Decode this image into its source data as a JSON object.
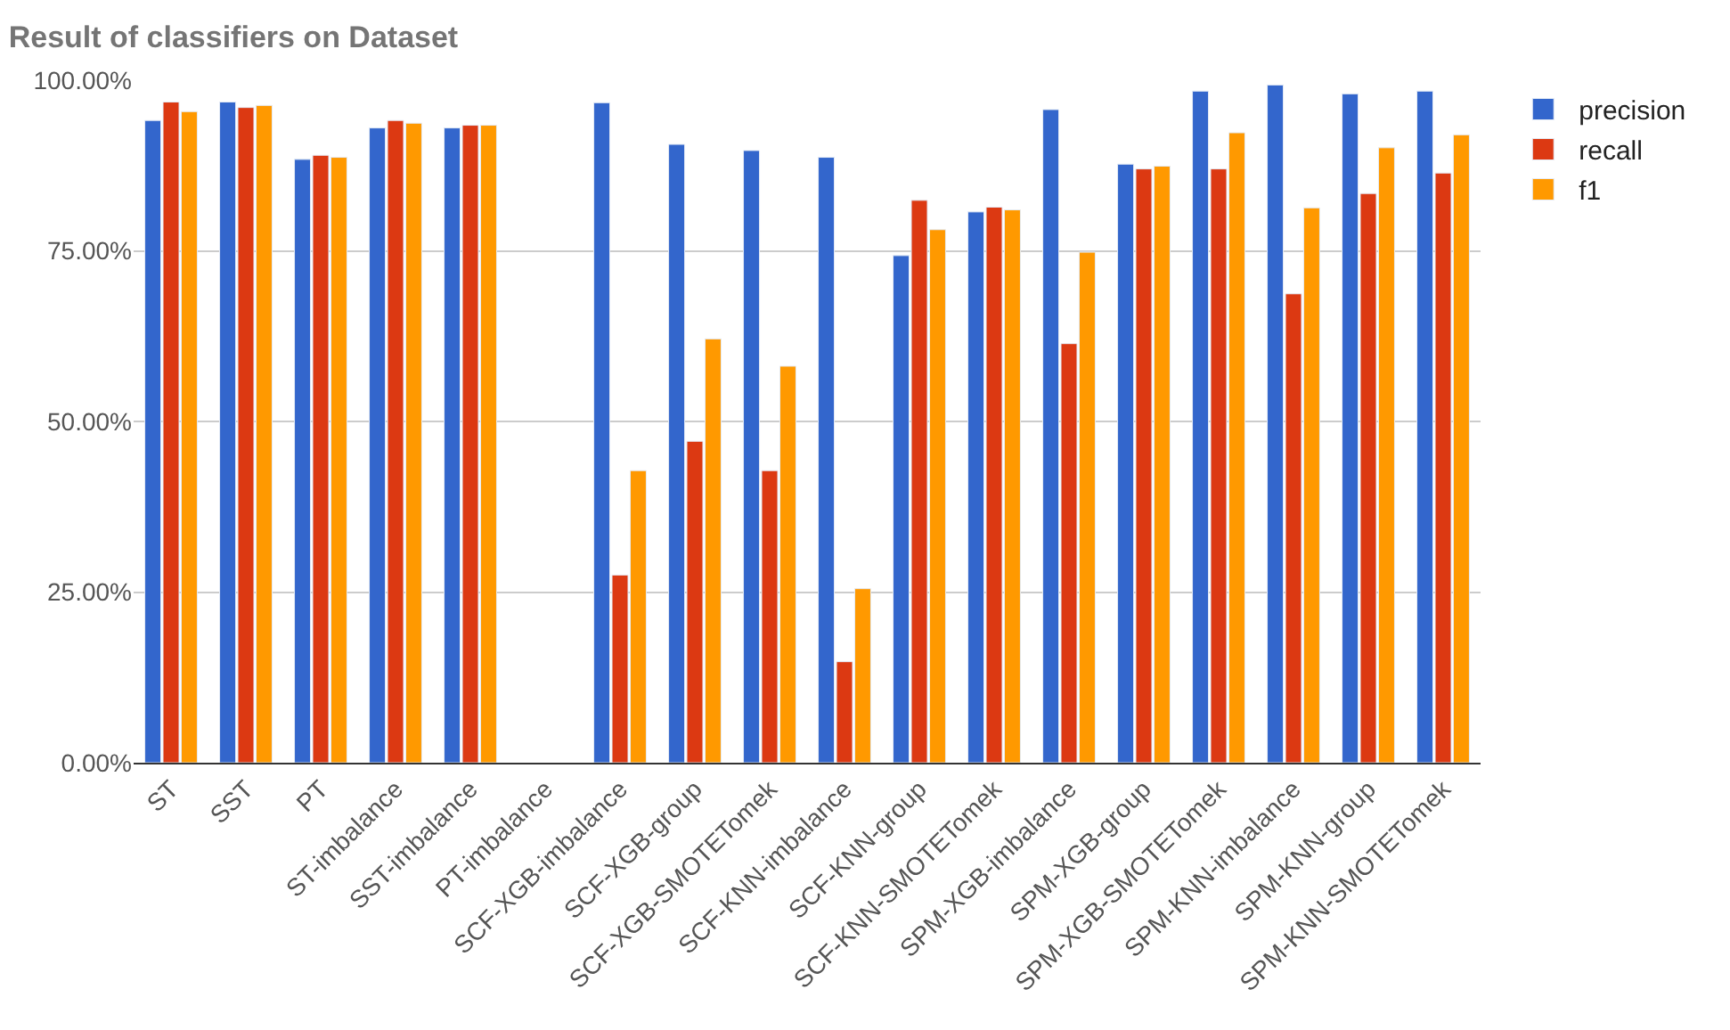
{
  "chart_data": {
    "type": "bar",
    "title": "Result of classifiers on Dataset",
    "categories": [
      "ST",
      "SST",
      "PT",
      "ST-imbalance",
      "SST-imbalance",
      "PT-imbalance",
      "SCF-XGB-imbalance",
      "SCF-XGB-group",
      "SCF-XGB-SMOTETomek",
      "SCF-KNN-imbalance",
      "SCF-KNN-group",
      "SCF-KNN-SMOTETomek",
      "SPM-XGB-imbalance",
      "SPM-XGB-group",
      "SPM-XGB-SMOTETomek",
      "SPM-KNN-imbalance",
      "SPM-KNN-group",
      "SPM-KNN-SMOTETomek"
    ],
    "series": [
      {
        "name": "precision",
        "color": "#3366cc",
        "values": [
          94.1,
          96.8,
          88.4,
          93.0,
          93.0,
          null,
          96.7,
          90.6,
          89.7,
          88.7,
          74.3,
          80.7,
          95.7,
          87.7,
          98.4,
          99.3,
          98.0,
          98.4
        ]
      },
      {
        "name": "recall",
        "color": "#dc3912",
        "values": [
          96.8,
          96.0,
          89.0,
          94.1,
          93.4,
          null,
          27.5,
          47.1,
          42.8,
          14.8,
          82.4,
          81.4,
          61.4,
          87.0,
          87.0,
          68.7,
          83.4,
          86.4
        ]
      },
      {
        "name": "f1",
        "color": "#ff9900",
        "values": [
          95.4,
          96.3,
          88.7,
          93.7,
          93.4,
          null,
          42.8,
          62.1,
          58.1,
          25.5,
          78.1,
          81.0,
          74.8,
          87.4,
          92.3,
          81.3,
          90.1,
          92.0
        ]
      }
    ],
    "ylim": [
      0,
      100
    ],
    "yticks": [
      {
        "value": 0,
        "label": "0.00%"
      },
      {
        "value": 25,
        "label": "25.00%"
      },
      {
        "value": 50,
        "label": "50.00%"
      },
      {
        "value": 75,
        "label": "75.00%"
      },
      {
        "value": 100,
        "label": "100.00%"
      }
    ],
    "grid": "y",
    "legend": "top right"
  }
}
